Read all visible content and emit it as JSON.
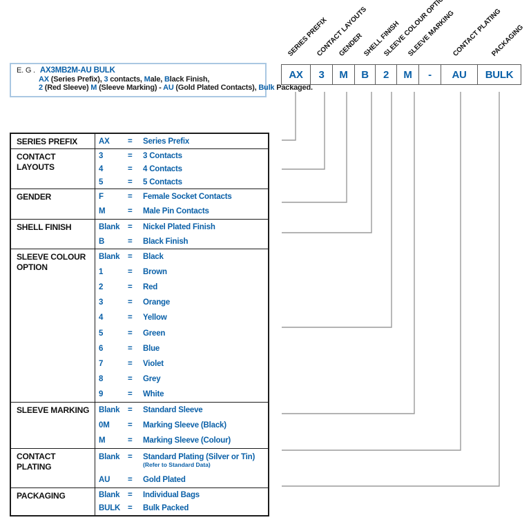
{
  "example": {
    "eg_label": "E. G .",
    "part_number": "AX3MB2M-AU BULK",
    "line2_segments": [
      {
        "text": "AX",
        "blue": true
      },
      {
        "text": " (Series Prefix), ",
        "blue": false
      },
      {
        "text": "3",
        "blue": true
      },
      {
        "text": " contacts, ",
        "blue": false
      },
      {
        "text": "M",
        "blue": true
      },
      {
        "text": "ale, ",
        "blue": false
      },
      {
        "text": "B",
        "blue": true
      },
      {
        "text": "lack Finish,",
        "blue": false
      }
    ],
    "line3_segments": [
      {
        "text": "2",
        "blue": true
      },
      {
        "text": " (Red Sleeve) ",
        "blue": false
      },
      {
        "text": "M",
        "blue": true
      },
      {
        "text": " (Sleeve Marking) - ",
        "blue": false
      },
      {
        "text": "AU",
        "blue": true
      },
      {
        "text": " (Gold Plated Contacts), ",
        "blue": false
      },
      {
        "text": "Bulk",
        "blue": true
      },
      {
        "text": " Packaged.",
        "blue": false
      }
    ]
  },
  "part_code_boxes": [
    "AX",
    "3",
    "M",
    "B",
    "2",
    "M",
    "-",
    "AU",
    "BULK"
  ],
  "column_labels": [
    "SERIES PREFIX",
    "CONTACT LAYOUTS",
    "GENDER",
    "SHELL FINISH",
    "SLEEVE COLOUR OPTION",
    "SLEEVE MARKING",
    "CONTACT PLATING",
    "PACKAGING"
  ],
  "table": {
    "equals_sign": "=",
    "sections": [
      {
        "label": "SERIES PREFIX",
        "rows": [
          {
            "code": "AX",
            "desc": "Series Prefix"
          }
        ]
      },
      {
        "label": "CONTACT LAYOUTS",
        "rows": [
          {
            "code": "3",
            "desc": "3 Contacts"
          },
          {
            "code": "4",
            "desc": "4 Contacts"
          },
          {
            "code": "5",
            "desc": "5 Contacts"
          }
        ]
      },
      {
        "label": "GENDER",
        "rows": [
          {
            "code": "F",
            "desc": "Female Socket Contacts"
          },
          {
            "code": "M",
            "desc": "Male Pin Contacts"
          }
        ]
      },
      {
        "label": "SHELL FINISH",
        "rows": [
          {
            "code": "Blank",
            "desc": "Nickel Plated Finish"
          },
          {
            "code": "B",
            "desc": "Black Finish"
          }
        ]
      },
      {
        "label": "SLEEVE COLOUR OPTION",
        "rows": [
          {
            "code": "Blank",
            "desc": "Black"
          },
          {
            "code": "1",
            "desc": "Brown"
          },
          {
            "code": "2",
            "desc": "Red"
          },
          {
            "code": "3",
            "desc": "Orange"
          },
          {
            "code": "4",
            "desc": "Yellow"
          },
          {
            "code": "5",
            "desc": "Green"
          },
          {
            "code": "6",
            "desc": "Blue"
          },
          {
            "code": "7",
            "desc": "Violet"
          },
          {
            "code": "8",
            "desc": "Grey"
          },
          {
            "code": "9",
            "desc": "White"
          }
        ]
      },
      {
        "label": "SLEEVE MARKING",
        "rows": [
          {
            "code": "Blank",
            "desc": "Standard Sleeve"
          },
          {
            "code": "0M",
            "desc": "Marking Sleeve (Black)"
          },
          {
            "code": "M",
            "desc": "Marking Sleeve (Colour)"
          }
        ]
      },
      {
        "label": "CONTACT PLATING",
        "rows": [
          {
            "code": "Blank",
            "desc": "Standard Plating (Silver or Tin)",
            "note": "(Refer to Standard Data)"
          },
          {
            "code": "AU",
            "desc": "Gold Plated"
          }
        ]
      },
      {
        "label": "PACKAGING",
        "rows": [
          {
            "code": "Blank",
            "desc": "Individual Bags"
          },
          {
            "code": "BULK",
            "desc": "Bulk Packed"
          }
        ]
      }
    ]
  },
  "colors": {
    "accent_blue": "#0a60a8",
    "table_border": "#1b1b1b",
    "connector_gray": "#9a9a9a",
    "example_box_border": "#a9c7e2"
  }
}
